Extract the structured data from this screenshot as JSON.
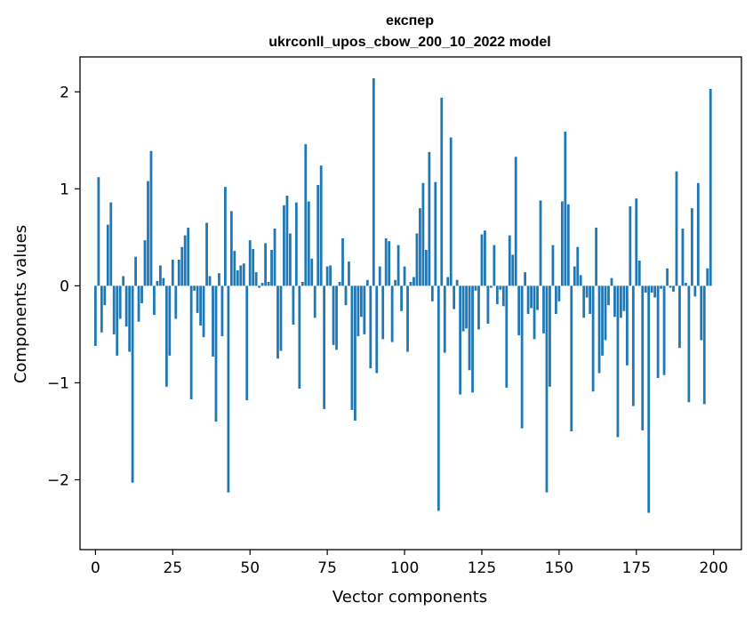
{
  "chart_data": {
    "type": "bar",
    "title_lines": [
      "експер",
      "ukrconll_upos_cbow_200_10_2022 model"
    ],
    "xlabel": "Vector components",
    "ylabel": "Components values",
    "xlim": [
      -5,
      209
    ],
    "ylim": [
      -2.72,
      2.36
    ],
    "xticks": [
      0,
      25,
      50,
      75,
      100,
      125,
      150,
      175,
      200
    ],
    "yticks": [
      -2,
      -1,
      0,
      1,
      2
    ],
    "ytick_labels": [
      "−2",
      "−1",
      "0",
      "1",
      "2"
    ],
    "grid": false,
    "bar_color": "#1f77b4",
    "x": [
      0,
      1,
      2,
      3,
      4,
      5,
      6,
      7,
      8,
      9,
      10,
      11,
      12,
      13,
      14,
      15,
      16,
      17,
      18,
      19,
      20,
      21,
      22,
      23,
      24,
      25,
      26,
      27,
      28,
      29,
      30,
      31,
      32,
      33,
      34,
      35,
      36,
      37,
      38,
      39,
      40,
      41,
      42,
      43,
      44,
      45,
      46,
      47,
      48,
      49,
      50,
      51,
      52,
      53,
      54,
      55,
      56,
      57,
      58,
      59,
      60,
      61,
      62,
      63,
      64,
      65,
      66,
      67,
      68,
      69,
      70,
      71,
      72,
      73,
      74,
      75,
      76,
      77,
      78,
      79,
      80,
      81,
      82,
      83,
      84,
      85,
      86,
      87,
      88,
      89,
      90,
      91,
      92,
      93,
      94,
      95,
      96,
      97,
      98,
      99,
      100,
      101,
      102,
      103,
      104,
      105,
      106,
      107,
      108,
      109,
      110,
      111,
      112,
      113,
      114,
      115,
      116,
      117,
      118,
      119,
      120,
      121,
      122,
      123,
      124,
      125,
      126,
      127,
      128,
      129,
      130,
      131,
      132,
      133,
      134,
      135,
      136,
      137,
      138,
      139,
      140,
      141,
      142,
      143,
      144,
      145,
      146,
      147,
      148,
      149,
      150,
      151,
      152,
      153,
      154,
      155,
      156,
      157,
      158,
      159,
      160,
      161,
      162,
      163,
      164,
      165,
      166,
      167,
      168,
      169,
      170,
      171,
      172,
      173,
      174,
      175,
      176,
      177,
      178,
      179,
      180,
      181,
      182,
      183,
      184,
      185,
      186,
      187,
      188,
      189,
      190,
      191,
      192,
      193,
      194,
      195,
      196,
      197,
      198,
      199
    ],
    "values": [
      -0.62,
      1.12,
      -0.48,
      -0.2,
      0.63,
      0.86,
      -0.5,
      -0.72,
      -0.34,
      0.1,
      -0.42,
      -0.68,
      -2.03,
      0.3,
      -0.37,
      -0.18,
      0.47,
      1.08,
      1.39,
      -0.3,
      0.05,
      0.21,
      0.08,
      -1.04,
      -0.72,
      0.27,
      -0.34,
      0.27,
      0.4,
      0.52,
      0.6,
      -1.17,
      -0.05,
      -0.28,
      -0.41,
      -0.53,
      0.65,
      0.1,
      -0.73,
      -1.4,
      0.13,
      -0.52,
      1.02,
      -2.13,
      0.77,
      0.36,
      0.16,
      0.21,
      0.23,
      -1.18,
      0.47,
      0.38,
      0.14,
      -0.02,
      0.03,
      0.44,
      0.04,
      0.37,
      0.59,
      -0.75,
      -0.67,
      0.83,
      0.93,
      0.54,
      -0.4,
      0.86,
      -1.06,
      0.04,
      1.46,
      0.87,
      0.28,
      -0.33,
      1.04,
      1.24,
      -1.27,
      0.2,
      0.21,
      -0.61,
      -0.66,
      0.04,
      0.49,
      -0.2,
      0.25,
      -1.28,
      -1.39,
      -0.52,
      -0.32,
      -0.5,
      0.06,
      -0.85,
      2.14,
      -0.9,
      0.2,
      -0.55,
      0.49,
      0.46,
      -0.58,
      0.06,
      0.42,
      -0.26,
      0.2,
      -0.68,
      0.04,
      0.09,
      0.54,
      0.8,
      1.06,
      0.37,
      1.38,
      -0.16,
      1.07,
      -2.32,
      1.94,
      -0.69,
      0.09,
      1.53,
      -0.24,
      0.06,
      -1.12,
      -0.47,
      -0.44,
      -0.87,
      -1.1,
      -0.05,
      -0.45,
      0.53,
      0.57,
      -0.39,
      -0.02,
      0.42,
      -0.19,
      -0.04,
      -0.21,
      -1.05,
      0.52,
      0.32,
      1.33,
      -0.51,
      -1.47,
      0.14,
      -0.29,
      -0.23,
      -0.55,
      -0.25,
      0.88,
      -0.49,
      -2.13,
      -1.04,
      0.42,
      -0.29,
      -0.16,
      0.87,
      1.59,
      0.84,
      -1.5,
      0.2,
      0.4,
      0.11,
      -0.33,
      -0.12,
      -0.29,
      -1.09,
      0.6,
      -0.9,
      -0.72,
      -0.56,
      -0.2,
      0.08,
      -0.32,
      -1.56,
      -0.33,
      -0.26,
      -0.82,
      0.82,
      -1.24,
      0.9,
      0.26,
      -1.49,
      -0.07,
      -2.34,
      -0.07,
      -0.12,
      -0.95,
      -0.03,
      -0.92,
      0.18,
      -0.02,
      -0.06,
      1.18,
      -0.64,
      0.59,
      0.03,
      -1.2,
      0.8,
      -0.11,
      1.06,
      -0.56,
      -1.22,
      0.18,
      2.03
    ]
  }
}
